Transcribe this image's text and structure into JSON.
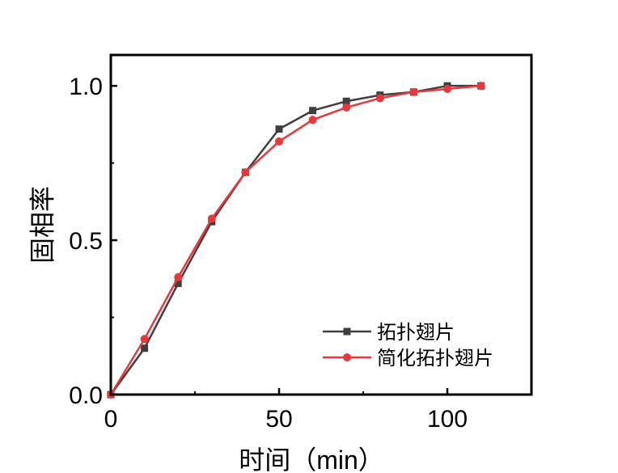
{
  "chart_data": {
    "type": "line",
    "title": "",
    "xlabel": "时间（min）",
    "ylabel": "固相率",
    "xlim": [
      0,
      125
    ],
    "ylim": [
      0,
      1.1
    ],
    "xticks": [
      0,
      50,
      100
    ],
    "xtick_labels": [
      "0",
      "50",
      "100"
    ],
    "yticks": [
      0.0,
      0.5,
      1.0
    ],
    "ytick_labels": [
      "0.0",
      "0.5",
      "1.0"
    ],
    "grid": false,
    "legend_position": "bottom-right",
    "series": [
      {
        "name": "拓扑翅片",
        "color": "#3f3f3f",
        "marker": "square",
        "x": [
          0,
          10,
          20,
          30,
          40,
          50,
          60,
          70,
          80,
          90,
          100,
          110
        ],
        "y": [
          0.0,
          0.15,
          0.36,
          0.56,
          0.72,
          0.86,
          0.92,
          0.95,
          0.97,
          0.98,
          1.0,
          1.0
        ]
      },
      {
        "name": "简化拓扑翅片",
        "color": "#e8383b",
        "marker": "circle",
        "x": [
          0,
          10,
          20,
          30,
          40,
          50,
          60,
          70,
          80,
          90,
          100,
          110
        ],
        "y": [
          0.0,
          0.18,
          0.38,
          0.57,
          0.72,
          0.82,
          0.89,
          0.93,
          0.96,
          0.98,
          0.99,
          1.0
        ]
      }
    ]
  }
}
